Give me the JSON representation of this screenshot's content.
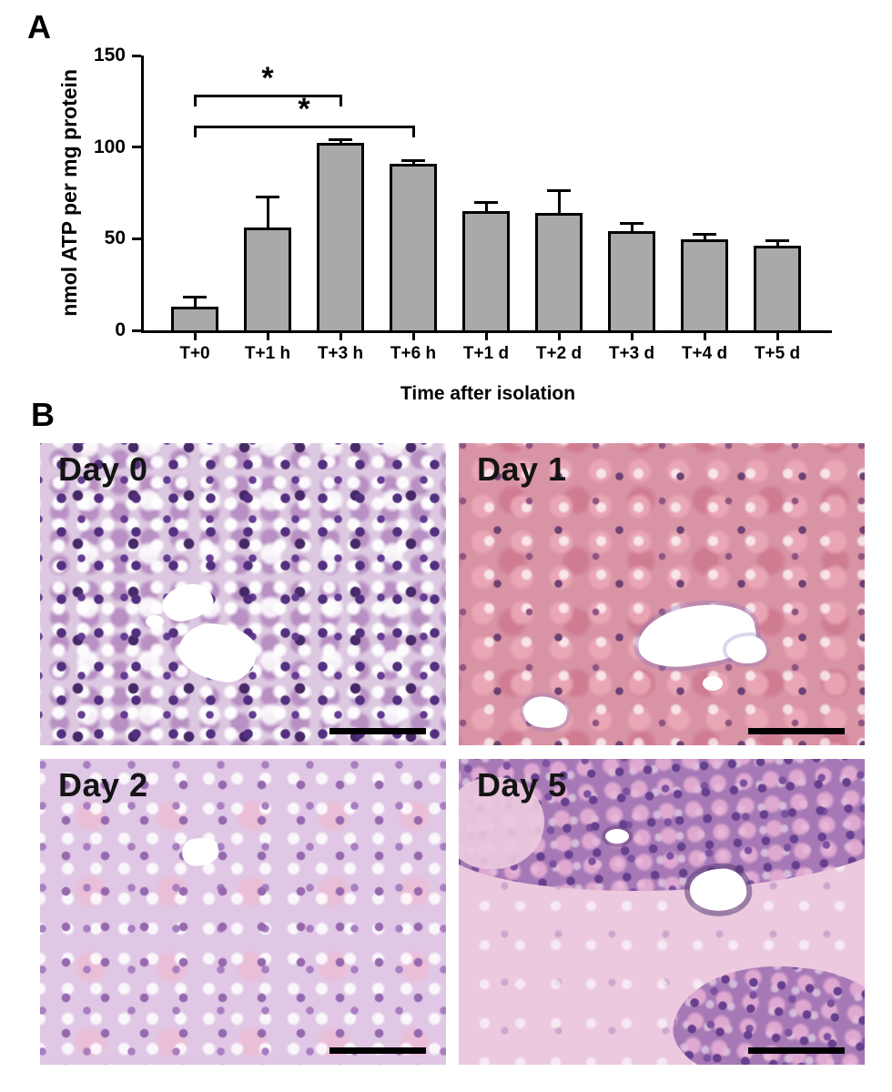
{
  "figure": {
    "background": "#ffffff",
    "panel_a": {
      "label": "A"
    },
    "panel_b": {
      "label": "B",
      "images": [
        {
          "label": "Day 0",
          "base_color": "#dcc8e0",
          "nuclei_color": "#53307f"
        },
        {
          "label": "Day 1",
          "base_color": "#d893a5",
          "nuclei_color": "#6d4173"
        },
        {
          "label": "Day 2",
          "base_color": "#dfc7e5",
          "nuclei_color": "#9668ae"
        },
        {
          "label": "Day 5",
          "base_color": "#ecc9de",
          "nuclei_color": "#663f8e"
        }
      ]
    }
  },
  "chart_data": {
    "type": "bar",
    "title": "",
    "xlabel": "Time after isolation",
    "ylabel": "nmol ATP per mg protein",
    "categories": [
      "T+0",
      "T+1 h",
      "T+3 h",
      "T+6 h",
      "T+1 d",
      "T+2 d",
      "T+3 d",
      "T+4 d",
      "T+5 d"
    ],
    "values": [
      13,
      56,
      102.5,
      91,
      65,
      64,
      54,
      49.5,
      46
    ],
    "errors": [
      5,
      17,
      1.5,
      1.5,
      5,
      12,
      4.5,
      3,
      3
    ],
    "error_style": "sd-upper",
    "ylim": [
      0,
      150
    ],
    "yticks": [
      0,
      50,
      100,
      150
    ],
    "grid": false,
    "legend": null,
    "bar_color": "#a9a9a9",
    "bar_border_color": "#000000",
    "significance": [
      {
        "from": "T+0",
        "to": "T+3 h",
        "label": "*",
        "height": 128.5
      },
      {
        "from": "T+0",
        "to": "T+6 h",
        "label": "*",
        "height": 112
      }
    ]
  }
}
